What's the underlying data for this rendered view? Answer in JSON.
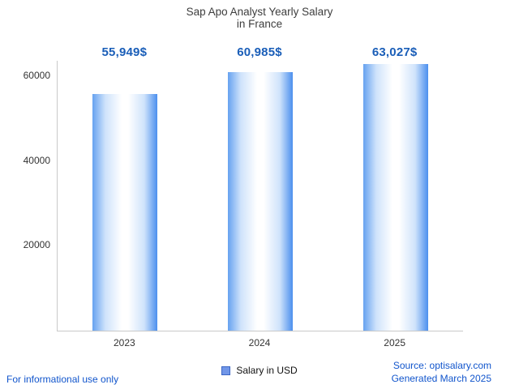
{
  "title": {
    "line1": "Sap Apo Analyst Yearly Salary",
    "line2": "in France"
  },
  "chart_data": {
    "type": "bar",
    "title": "Sap Apo Analyst Yearly Salary in France",
    "categories": [
      "2023",
      "2024",
      "2025"
    ],
    "values": [
      55949,
      60985,
      63027
    ],
    "value_labels": [
      "55,949$",
      "60,985$",
      "63,027$"
    ],
    "xlabel": "",
    "ylabel": "",
    "ylim": [
      0,
      63700
    ],
    "yticks": [
      20000,
      40000,
      60000
    ],
    "grid": false,
    "legend_position": "bottom",
    "legend": [
      {
        "label": "Salary in USD"
      }
    ]
  },
  "legend": {
    "label": "Salary in USD"
  },
  "footer": {
    "disclaimer": "For informational use only",
    "source": "Source: optisalary.com",
    "generated": "Generated March 2025"
  },
  "colors": {
    "value_label": "#1a5eb8",
    "link": "#1155cc",
    "axis": "#c9c9c9",
    "text": "#333333",
    "bar_edge_left": "#66a2f0",
    "bar_edge_right": "#4b8fee",
    "bar_light": "#cfe3fb",
    "bar_center": "#ffffff",
    "legend_fill": "#7196e8",
    "legend_border": "#3c66c4"
  }
}
